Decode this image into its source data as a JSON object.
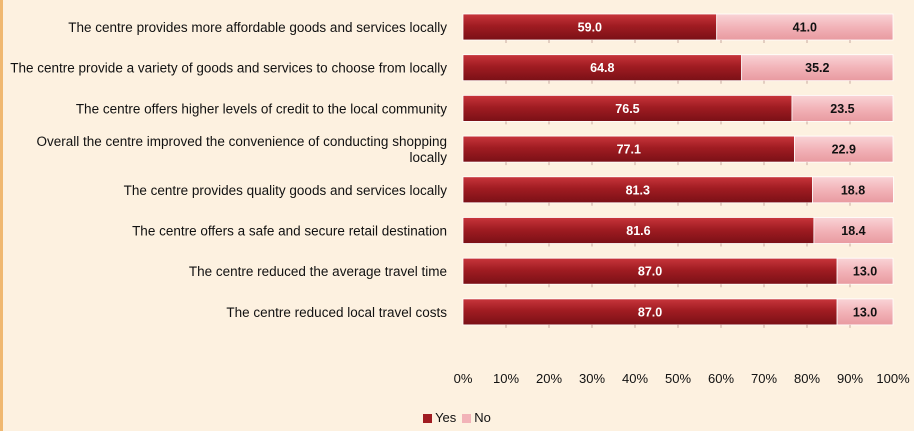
{
  "chart_data": {
    "type": "bar",
    "stacked": true,
    "orientation": "horizontal",
    "title": "",
    "xlabel": "",
    "ylabel": "",
    "xlim": [
      0,
      100
    ],
    "x_tick_labels": [
      "0%",
      "10%",
      "20%",
      "30%",
      "40%",
      "50%",
      "60%",
      "70%",
      "80%",
      "90%",
      "100%"
    ],
    "grid": false,
    "legend_position": "bottom",
    "categories": [
      "The centre provides more affordable goods and services locally",
      "The centre provide a variety of goods and services to choose from locally",
      "The centre offers higher levels of credit to the local community",
      "Overall the centre improved the convenience of conducting shopping locally",
      "The centre provides quality goods and services locally",
      "The centre offers a safe and secure retail destination",
      "The centre reduced the average travel time",
      "The centre reduced local travel costs"
    ],
    "series": [
      {
        "name": "Yes",
        "color": "#a01c22",
        "values": [
          59.0,
          64.8,
          76.5,
          77.1,
          81.3,
          81.6,
          87.0,
          87.0
        ],
        "labels": [
          "59.0",
          "64.8",
          "76.5",
          "77.1",
          "81.3",
          "81.6",
          "87.0",
          "87.0"
        ]
      },
      {
        "name": "No",
        "color": "#f2b3b8",
        "values": [
          41.0,
          35.2,
          23.5,
          22.9,
          18.8,
          18.4,
          13.0,
          13.0
        ],
        "labels": [
          "41.0",
          "35.2",
          "23.5",
          "22.9",
          "18.8",
          "18.4",
          "13.0",
          "13.0"
        ]
      }
    ]
  }
}
